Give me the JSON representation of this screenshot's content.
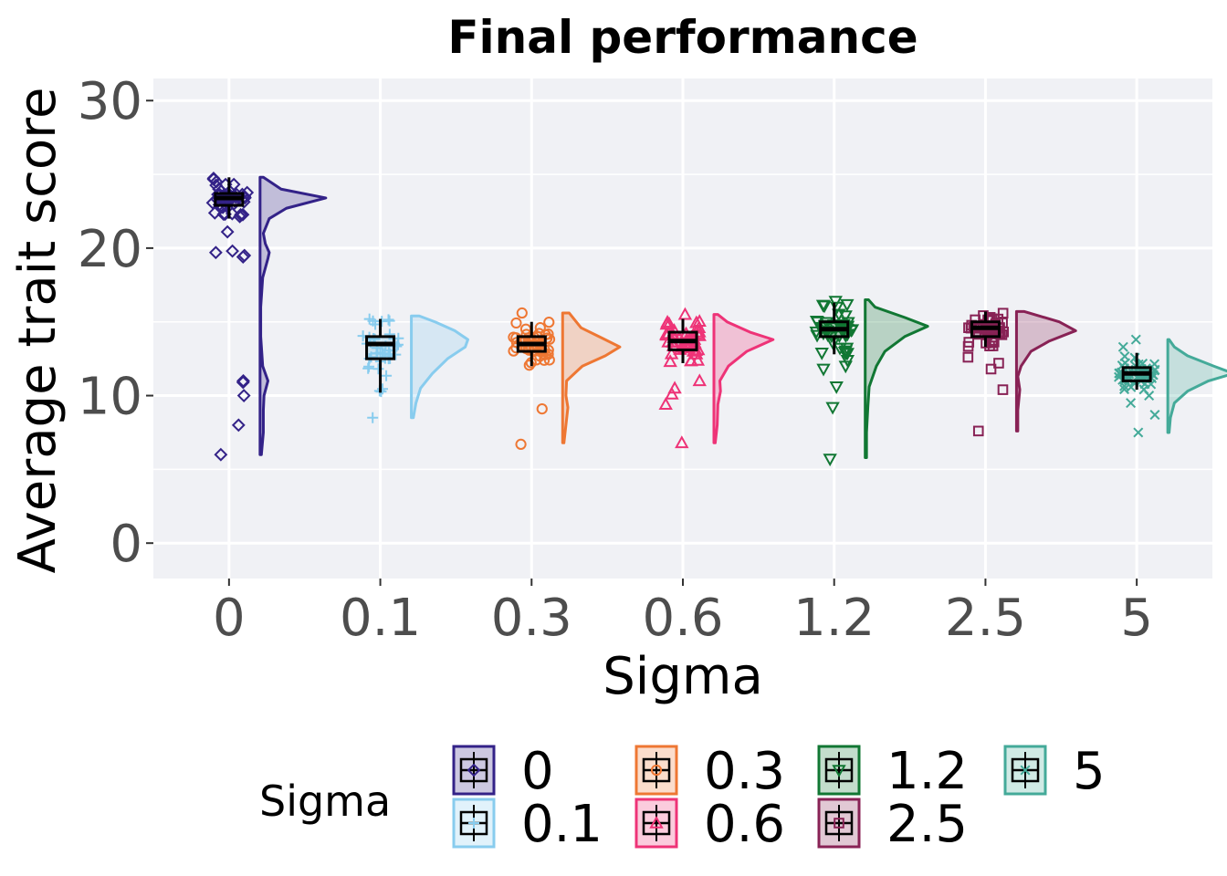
{
  "chart_data": {
    "type": "raincloud",
    "title": "Final performance",
    "xlabel": "Sigma",
    "ylabel": "Average trait score",
    "categories": [
      "0",
      "0.1",
      "0.3",
      "0.6",
      "1.2",
      "2.5",
      "5"
    ],
    "y_ticks": [
      0,
      10,
      20,
      30
    ],
    "ylim": [
      -2.4,
      31.5
    ],
    "grid": true,
    "legend": {
      "title": "Sigma",
      "placement": "bottom",
      "entries": [
        "0",
        "0.1",
        "0.3",
        "0.6",
        "1.2",
        "2.5",
        "5"
      ]
    },
    "series": [
      {
        "category": "0",
        "color": "#332288",
        "marker": "diamond",
        "box": {
          "q1": 22.9,
          "median": 23.4,
          "q3": 23.7,
          "whisker_low": 22.0,
          "whisker_high": 24.8
        },
        "outliers": [
          21.1,
          19.8,
          19.7,
          19.5,
          19.4,
          11.0,
          10.9,
          10.0,
          8.0,
          6.0
        ],
        "density": [
          [
            6.0,
            0.02
          ],
          [
            7.5,
            0.05
          ],
          [
            9.0,
            0.05
          ],
          [
            10.0,
            0.06
          ],
          [
            11.0,
            0.12
          ],
          [
            12.0,
            0.04
          ],
          [
            14.0,
            0.01
          ],
          [
            16.0,
            0.01
          ],
          [
            18.0,
            0.04
          ],
          [
            19.3,
            0.12
          ],
          [
            19.7,
            0.14
          ],
          [
            20.3,
            0.08
          ],
          [
            21.0,
            0.05
          ],
          [
            22.0,
            0.14
          ],
          [
            22.7,
            0.4
          ],
          [
            23.4,
            1.0
          ],
          [
            24.0,
            0.32
          ],
          [
            24.8,
            0.05
          ]
        ]
      },
      {
        "category": "0.1",
        "color": "#88CCEE",
        "marker": "plus",
        "box": {
          "q1": 12.5,
          "median": 13.5,
          "q3": 14.0,
          "whisker_low": 10.2,
          "whisker_high": 15.2
        },
        "outliers": [
          8.5
        ],
        "density": [
          [
            8.5,
            0.03
          ],
          [
            9.5,
            0.07
          ],
          [
            10.5,
            0.14
          ],
          [
            11.5,
            0.32
          ],
          [
            12.5,
            0.55
          ],
          [
            13.3,
            0.82
          ],
          [
            13.8,
            0.86
          ],
          [
            14.4,
            0.66
          ],
          [
            15.0,
            0.36
          ],
          [
            15.4,
            0.12
          ]
        ]
      },
      {
        "category": "0.3",
        "color": "#EE7733",
        "marker": "circle",
        "box": {
          "q1": 13.0,
          "median": 13.5,
          "q3": 14.0,
          "whisker_low": 12.0,
          "whisker_high": 15.0
        },
        "outliers": [
          9.1,
          6.7,
          15.6
        ],
        "density": [
          [
            6.8,
            0.02
          ],
          [
            8.0,
            0.05
          ],
          [
            9.2,
            0.08
          ],
          [
            10.0,
            0.05
          ],
          [
            11.0,
            0.06
          ],
          [
            12.0,
            0.3
          ],
          [
            12.7,
            0.65
          ],
          [
            13.3,
            0.87
          ],
          [
            13.9,
            0.6
          ],
          [
            14.6,
            0.28
          ],
          [
            15.6,
            0.1
          ]
        ]
      },
      {
        "category": "0.6",
        "color": "#EE3377",
        "marker": "triangle",
        "box": {
          "q1": 13.1,
          "median": 13.7,
          "q3": 14.3,
          "whisker_low": 12.2,
          "whisker_high": 15.2
        },
        "outliers": [
          11.0,
          10.5,
          10.1,
          9.4,
          6.8,
          15.5
        ],
        "density": [
          [
            6.8,
            0.02
          ],
          [
            8.0,
            0.05
          ],
          [
            9.4,
            0.06
          ],
          [
            10.3,
            0.1
          ],
          [
            11.0,
            0.09
          ],
          [
            12.0,
            0.22
          ],
          [
            13.0,
            0.5
          ],
          [
            13.8,
            0.9
          ],
          [
            14.3,
            0.55
          ],
          [
            15.0,
            0.2
          ],
          [
            15.5,
            0.06
          ]
        ]
      },
      {
        "category": "1.2",
        "color": "#117733",
        "marker": "triangle-down",
        "box": {
          "q1": 14.0,
          "median": 14.5,
          "q3": 15.0,
          "whisker_low": 12.8,
          "whisker_high": 16.3
        },
        "outliers": [
          12.4,
          12.0,
          11.8,
          10.6,
          9.2,
          5.7,
          16.4
        ],
        "density": [
          [
            5.8,
            0.02
          ],
          [
            7.5,
            0.02
          ],
          [
            9.2,
            0.04
          ],
          [
            10.6,
            0.06
          ],
          [
            12.0,
            0.17
          ],
          [
            13.0,
            0.3
          ],
          [
            14.0,
            0.6
          ],
          [
            14.7,
            0.95
          ],
          [
            15.3,
            0.6
          ],
          [
            16.0,
            0.15
          ],
          [
            16.5,
            0.05
          ]
        ]
      },
      {
        "category": "2.5",
        "color": "#882255",
        "marker": "square",
        "box": {
          "q1": 14.0,
          "median": 14.6,
          "q3": 15.0,
          "whisker_low": 13.3,
          "whisker_high": 15.7
        },
        "outliers": [
          12.6,
          12.2,
          11.8,
          10.4,
          7.6
        ],
        "density": [
          [
            7.6,
            0.02
          ],
          [
            9.0,
            0.02
          ],
          [
            10.4,
            0.05
          ],
          [
            11.3,
            0.02
          ],
          [
            12.0,
            0.07
          ],
          [
            13.0,
            0.22
          ],
          [
            13.7,
            0.5
          ],
          [
            14.4,
            0.9
          ],
          [
            15.0,
            0.65
          ],
          [
            15.7,
            0.12
          ]
        ]
      },
      {
        "category": "5",
        "color": "#44AA99",
        "marker": "cross",
        "box": {
          "q1": 11.0,
          "median": 11.5,
          "q3": 11.9,
          "whisker_low": 10.4,
          "whisker_high": 12.9
        },
        "outliers": [
          10.0,
          9.5,
          8.7,
          7.5,
          13.3,
          13.8
        ],
        "density": [
          [
            7.5,
            0.02
          ],
          [
            8.5,
            0.04
          ],
          [
            9.5,
            0.1
          ],
          [
            10.3,
            0.3
          ],
          [
            11.0,
            0.62
          ],
          [
            11.5,
            1.0
          ],
          [
            12.0,
            0.7
          ],
          [
            12.7,
            0.3
          ],
          [
            13.3,
            0.1
          ],
          [
            13.8,
            0.02
          ]
        ]
      }
    ]
  }
}
